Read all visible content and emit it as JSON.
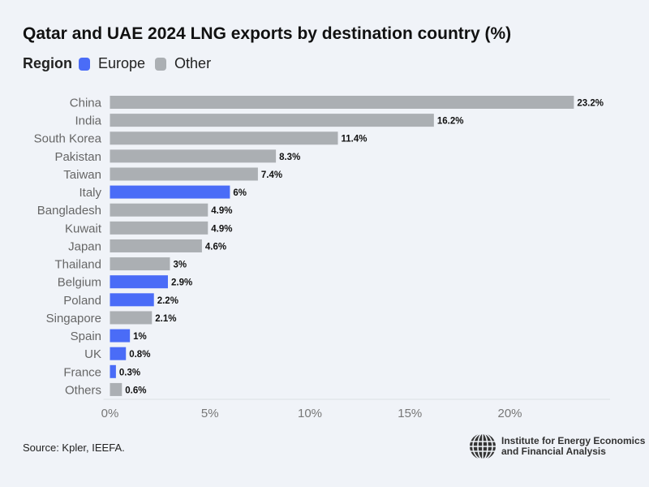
{
  "title": "Qatar and UAE 2024 LNG exports by destination country (%)",
  "legend": {
    "title": "Region",
    "items": [
      {
        "label": "Europe",
        "color": "#4a6cf7"
      },
      {
        "label": "Other",
        "color": "#abafb3"
      }
    ]
  },
  "chart_data": {
    "type": "bar",
    "orientation": "horizontal",
    "title": "Qatar and UAE 2024 LNG exports by destination country (%)",
    "categories": [
      "China",
      "India",
      "South Korea",
      "Pakistan",
      "Taiwan",
      "Italy",
      "Bangladesh",
      "Kuwait",
      "Japan",
      "Thailand",
      "Belgium",
      "Poland",
      "Singapore",
      "Spain",
      "UK",
      "France",
      "Others"
    ],
    "values": [
      23.2,
      16.2,
      11.4,
      8.3,
      7.4,
      6,
      4.9,
      4.9,
      4.6,
      3,
      2.9,
      2.2,
      2.1,
      1,
      0.8,
      0.3,
      0.6
    ],
    "labels": [
      "23.2%",
      "16.2%",
      "11.4%",
      "8.3%",
      "7.4%",
      "6%",
      "4.9%",
      "4.9%",
      "4.6%",
      "3%",
      "2.9%",
      "2.2%",
      "2.1%",
      "1%",
      "0.8%",
      "0.3%",
      "0.6%"
    ],
    "region": [
      "Other",
      "Other",
      "Other",
      "Other",
      "Other",
      "Europe",
      "Other",
      "Other",
      "Other",
      "Other",
      "Europe",
      "Europe",
      "Other",
      "Europe",
      "Europe",
      "Europe",
      "Other"
    ],
    "colors": {
      "Europe": "#4a6cf7",
      "Other": "#abafb3"
    },
    "xticks": [
      "0%",
      "5%",
      "10%",
      "15%",
      "20%"
    ],
    "xtick_values": [
      0,
      5,
      10,
      15,
      20
    ],
    "xlim": [
      0,
      25
    ],
    "grid": false,
    "legend_position": "top-left"
  },
  "source": "Source: Kpler, IEEFA.",
  "logo": {
    "line1": "Institute for Energy Economics",
    "line2": "and Financial Analysis"
  }
}
